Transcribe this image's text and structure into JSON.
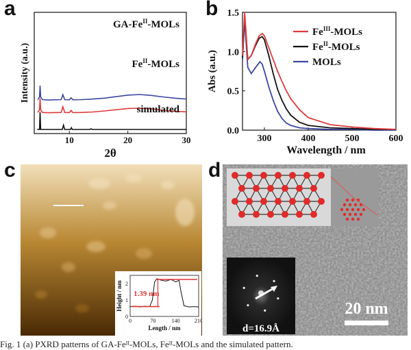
{
  "panels": {
    "a": {
      "letter": "a",
      "chart_data": {
        "type": "line",
        "xlabel": "2θ",
        "ylabel": "Intensity (a.u.)",
        "xlim": [
          4,
          30
        ],
        "xticks": [
          "10",
          "20",
          "30"
        ],
        "series": [
          {
            "name": "GA-Fe",
            "sup": "II",
            "suffix": "-MOLs",
            "color": "#3b46a2",
            "x": [
              4.6,
              4.9,
              5.0,
              5.1,
              5.4,
              6.5,
              8.6,
              8.9,
              9.2,
              10.0,
              10.3,
              10.6,
              12,
              14,
              16,
              18,
              20,
              22,
              24,
              26,
              28,
              30
            ],
            "y": [
              0.02,
              0.2,
              0.95,
              0.2,
              0.02,
              0.0,
              0.02,
              0.35,
              0.02,
              0.01,
              0.14,
              0.01,
              0.02,
              0.06,
              0.12,
              0.22,
              0.32,
              0.36,
              0.3,
              0.2,
              0.12,
              0.06
            ]
          },
          {
            "name": "Fe",
            "sup": "II",
            "suffix": "-MOLs",
            "color": "#e0393a",
            "x": [
              4.6,
              4.9,
              5.0,
              5.1,
              5.4,
              6.5,
              8.6,
              8.9,
              9.2,
              10.0,
              10.3,
              10.6,
              12,
              14,
              16,
              18,
              20,
              22,
              24,
              26,
              28,
              30
            ],
            "y": [
              0.02,
              0.2,
              0.95,
              0.2,
              0.02,
              0.0,
              0.02,
              0.4,
              0.02,
              0.01,
              0.15,
              0.01,
              0.02,
              0.05,
              0.12,
              0.2,
              0.28,
              0.3,
              0.26,
              0.16,
              0.1,
              0.06
            ]
          },
          {
            "name": "simulated",
            "sup": "",
            "suffix": "",
            "color": "#111111",
            "x": [
              4.5,
              4.9,
              5.0,
              5.1,
              5.5,
              8.8,
              9.0,
              9.2,
              10.2,
              10.35,
              10.5,
              13.5,
              13.7,
              13.9,
              30
            ],
            "y": [
              0.0,
              0.0,
              1.0,
              0.0,
              0.0,
              0.0,
              0.25,
              0.0,
              0.0,
              0.1,
              0.0,
              0.0,
              0.04,
              0.0,
              0.0
            ]
          }
        ],
        "offsets": [
          2.05,
          1.2,
          0.08
        ]
      }
    },
    "b": {
      "letter": "b",
      "chart_data": {
        "type": "line",
        "xlabel": "Wavelength / nm",
        "ylabel": "Abs (a.u.)",
        "xlim": [
          250,
          600
        ],
        "ylim": [
          0,
          1.5
        ],
        "xticks": [
          "300",
          "400",
          "500",
          "600"
        ],
        "yticks": [
          "0.0",
          "0.5",
          "1.0",
          "1.5"
        ],
        "legend_position": "top-right",
        "series": [
          {
            "name": "Fe",
            "sup": "III",
            "suffix": "-MOLs",
            "color": "#e0393a",
            "x": [
              250,
              255,
              262,
              270,
              280,
              288,
              295,
              300,
              310,
              320,
              330,
              340,
              350,
              360,
              380,
              400,
              450,
              500,
              550,
              600
            ],
            "y": [
              0.95,
              1.5,
              0.9,
              0.95,
              1.1,
              1.2,
              1.23,
              1.2,
              1.05,
              0.9,
              0.75,
              0.62,
              0.5,
              0.4,
              0.26,
              0.16,
              0.07,
              0.04,
              0.02,
              0.01
            ]
          },
          {
            "name": "Fe",
            "sup": "II",
            "suffix": "-MOLs",
            "color": "#111111",
            "x": [
              250,
              255,
              262,
              270,
              280,
              288,
              295,
              300,
              310,
              320,
              330,
              340,
              350,
              360,
              380,
              400,
              450,
              500,
              550,
              600
            ],
            "y": [
              0.92,
              1.45,
              0.9,
              0.95,
              1.08,
              1.17,
              1.19,
              1.15,
              0.95,
              0.72,
              0.52,
              0.38,
              0.27,
              0.19,
              0.1,
              0.06,
              0.03,
              0.02,
              0.01,
              0.01
            ]
          },
          {
            "name": "MOLs",
            "sup": "",
            "suffix": "",
            "color": "#3b46a2",
            "x": [
              250,
              255,
              262,
              270,
              280,
              290,
              295,
              300,
              310,
              320,
              330,
              340,
              350,
              360,
              380,
              400,
              450,
              500,
              550,
              600
            ],
            "y": [
              0.9,
              1.4,
              0.8,
              0.72,
              0.8,
              0.87,
              0.84,
              0.75,
              0.55,
              0.38,
              0.24,
              0.15,
              0.09,
              0.06,
              0.03,
              0.02,
              0.01,
              0.01,
              0.0,
              0.0
            ]
          }
        ]
      }
    },
    "c": {
      "letter": "c",
      "colors": {
        "bright": "#f1dfb9",
        "mid": "#b98834",
        "dark": "#4a2a04"
      },
      "inset_chart_data": {
        "type": "line",
        "xlabel": "Length / nm",
        "ylabel": "Height / nm",
        "xlim": [
          0,
          210
        ],
        "ylim": [
          0,
          2.5
        ],
        "xticks": [
          "0",
          "70",
          "140",
          "210"
        ],
        "yticks": [
          "0",
          "1",
          "2"
        ],
        "annotation": "1.39 nm",
        "series": [
          {
            "name": "",
            "color": "#111111",
            "x": [
              0,
              15,
              30,
              45,
              60,
              68,
              75,
              82,
              95,
              110,
              125,
              140,
              150,
              155,
              165,
              180,
              195,
              210
            ],
            "y": [
              0.6,
              0.62,
              0.58,
              0.62,
              0.6,
              1.0,
              2.1,
              2.3,
              2.2,
              2.15,
              2.25,
              2.1,
              2.2,
              1.6,
              0.65,
              0.58,
              0.6,
              0.58
            ]
          }
        ]
      }
    },
    "d": {
      "letter": "d",
      "scale_bar_label": "20 nm",
      "fft_label": "d=16.9Å",
      "colors": {
        "node": "#e12a2a",
        "link": "#333333"
      }
    }
  },
  "caption": "Fig. 1  (a) PXRD patterns of GA-Feᴵᴵ-MOLs, Feᴵᴵ-MOLs and the simulated pattern."
}
